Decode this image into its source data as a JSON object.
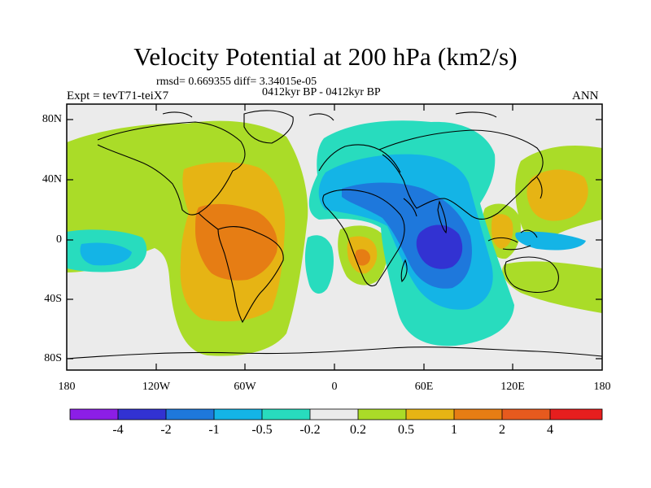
{
  "title": "Velocity Potential at 200 hPa (km2/s)",
  "stats": "rmsd= 0.669355 diff= 3.34015e-05",
  "period": "0412kyr BP - 0412kyr BP",
  "experiment": "Expt = tevT71-teiX7",
  "season": "ANN",
  "y_axis": {
    "ticks": [
      "80N",
      "40N",
      "0",
      "40S",
      "80S"
    ]
  },
  "x_axis": {
    "ticks": [
      "180",
      "120W",
      "60W",
      "0",
      "60E",
      "120E",
      "180"
    ]
  },
  "colorbar": {
    "labels": [
      "-4",
      "-2",
      "-1",
      "-0.5",
      "-0.2",
      "0.2",
      "0.5",
      "1",
      "2",
      "4"
    ],
    "colors": [
      "#8c1ee6",
      "#3232d2",
      "#1e78dc",
      "#14b4e6",
      "#28dcbe",
      "#ebebeb",
      "#aadc28",
      "#e6b414",
      "#e67d14",
      "#e65a1e",
      "#e61e1e"
    ]
  },
  "fill_colors": {
    "background": "#ebebeb",
    "pos_weak": "#aadc28",
    "pos_mid": "#e6b414",
    "pos_strong": "#e67d14",
    "pos_peak": "#e65a1e",
    "neg_weak": "#28dcbe",
    "neg_mid": "#14b4e6",
    "neg_strong": "#1e78dc",
    "neg_peak": "#3232d2"
  }
}
